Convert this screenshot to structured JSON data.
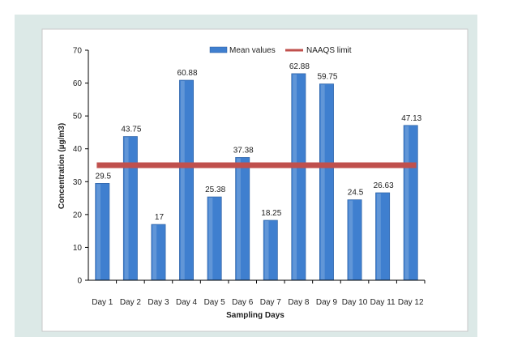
{
  "chart_data": {
    "type": "bar",
    "categories": [
      "Day 1",
      "Day 2",
      "Day 3",
      "Day 4",
      "Day 5",
      "Day 6",
      "Day 7",
      "Day 8",
      "Day 9",
      "Day 10",
      "Day 11",
      "Day 12"
    ],
    "series": [
      {
        "name": "Mean values",
        "values": [
          29.5,
          43.75,
          17,
          60.88,
          25.38,
          37.38,
          18.25,
          62.88,
          59.75,
          24.5,
          26.63,
          47.13
        ],
        "color": "#3f7fcf"
      }
    ],
    "data_labels": [
      "29.5",
      "43.75",
      "17",
      "60.88",
      "25.38",
      "37.38",
      "18.25",
      "62.88",
      "59.75",
      "24.5",
      "26.63",
      "47.13"
    ],
    "reference_line": {
      "name": "NAAQS limit",
      "value": 35,
      "color": "#c0504d"
    },
    "xlabel": "Sampling Days",
    "ylabel": "Concentration (µg/m3)",
    "ylim": [
      0,
      70
    ],
    "yticks": [
      0,
      10,
      20,
      30,
      40,
      50,
      60,
      70
    ],
    "grid": false,
    "legend": "top"
  }
}
